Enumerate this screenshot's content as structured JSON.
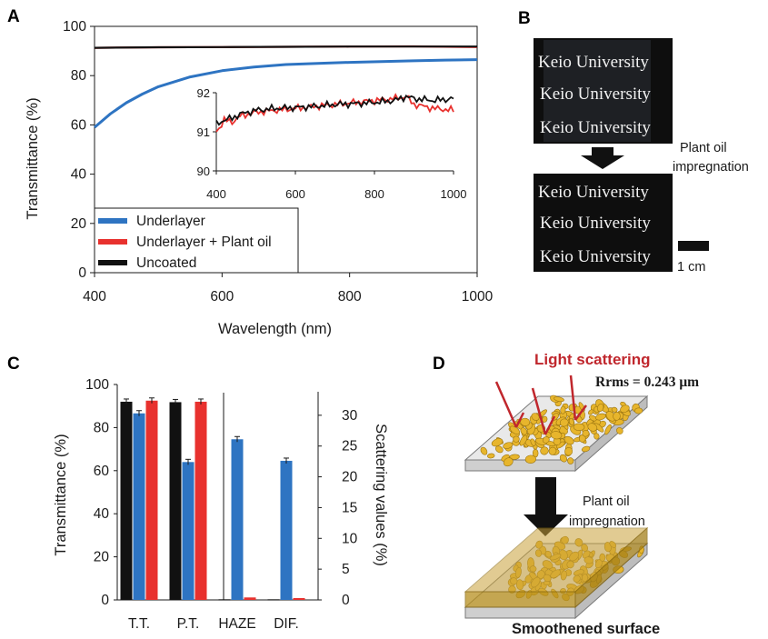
{
  "panels": {
    "a_letter": "A",
    "b_letter": "B",
    "c_letter": "C",
    "d_letter": "D"
  },
  "colors": {
    "underlayer": "#2e74c2",
    "plant_oil": "#e8312e",
    "uncoated": "#111111",
    "gold": "#e7b52c",
    "arrow_red": "#c0272d"
  },
  "chart_data": [
    {
      "id": "A",
      "type": "line",
      "xlabel": "Wavelength (nm)",
      "ylabel": "Transmittance (%)",
      "xlim": [
        400,
        1000
      ],
      "ylim": [
        0,
        100
      ],
      "xticks": [
        "400",
        "600",
        "800",
        "1000"
      ],
      "yticks": [
        "0",
        "20",
        "40",
        "60",
        "80",
        "100"
      ],
      "legend_position": "bottom-left",
      "series": [
        {
          "name": "Underlayer",
          "color": "#2e74c2",
          "x": [
            400,
            425,
            450,
            475,
            500,
            550,
            600,
            650,
            700,
            750,
            800,
            850,
            900,
            950,
            1000
          ],
          "y": [
            59,
            64.5,
            69,
            72.5,
            75.5,
            79.5,
            82,
            83.5,
            84.5,
            85,
            85.4,
            85.7,
            86,
            86.3,
            86.5
          ]
        },
        {
          "name": "Underlayer + Plant oil",
          "color": "#e8312e",
          "x": [
            400,
            500,
            600,
            700,
            800,
            900,
            1000
          ],
          "y": [
            91.3,
            91.5,
            91.6,
            91.7,
            91.8,
            91.9,
            91.6
          ]
        },
        {
          "name": "Uncoated",
          "color": "#111111",
          "x": [
            400,
            500,
            600,
            700,
            800,
            900,
            1000
          ],
          "y": [
            91.3,
            91.5,
            91.6,
            91.7,
            91.8,
            91.8,
            91.8
          ]
        }
      ],
      "inset": {
        "xlim": [
          400,
          1000
        ],
        "ylim": [
          90,
          92
        ],
        "xticks": [
          "400",
          "600",
          "800",
          "1000"
        ],
        "yticks": [
          "90",
          "91",
          "92"
        ],
        "series": [
          {
            "name": "Underlayer + Plant oil",
            "x": [
              400,
              420,
              440,
              460,
              480,
              500,
              550,
              600,
              650,
              700,
              750,
              800,
              850,
              880,
              900,
              950,
              1000
            ],
            "y": [
              91.0,
              91.3,
              91.25,
              91.4,
              91.45,
              91.5,
              91.55,
              91.6,
              91.65,
              91.7,
              91.75,
              91.8,
              91.85,
              91.9,
              91.7,
              91.6,
              91.55
            ]
          },
          {
            "name": "Uncoated",
            "x": [
              400,
              420,
              440,
              460,
              480,
              500,
              550,
              600,
              650,
              700,
              750,
              800,
              850,
              880,
              900,
              950,
              1000
            ],
            "y": [
              91.2,
              91.3,
              91.35,
              91.45,
              91.5,
              91.55,
              91.6,
              91.62,
              91.65,
              91.7,
              91.72,
              91.75,
              91.8,
              91.9,
              91.85,
              91.8,
              91.85
            ]
          }
        ]
      }
    },
    {
      "id": "C",
      "type": "bar",
      "ylabel": "Transmittance (%)",
      "y2label": "Scattering values (%)",
      "categories": [
        "T.T.",
        "P.T.",
        "HAZE",
        "DIF."
      ],
      "ylim": [
        0,
        100
      ],
      "y2lim": [
        0,
        35
      ],
      "yticks": [
        "0",
        "20",
        "40",
        "60",
        "80",
        "100"
      ],
      "y2ticks": [
        "0",
        "5",
        "10",
        "15",
        "20",
        "25",
        "30"
      ],
      "series": [
        {
          "color": "#111111",
          "values": [
            92.0,
            91.8,
            0.1,
            0.1
          ],
          "axis": [
            "left",
            "left",
            "right",
            "right"
          ]
        },
        {
          "color": "#2e74c2",
          "values": [
            86.6,
            64.0,
            26.1,
            22.6
          ],
          "axis": [
            "left",
            "left",
            "right",
            "right"
          ]
        },
        {
          "color": "#e8312e",
          "values": [
            92.5,
            92.0,
            0.4,
            0.3
          ],
          "axis": [
            "left",
            "left",
            "right",
            "right"
          ]
        }
      ]
    }
  ],
  "panel_b": {
    "photo_text": [
      "Keio University",
      "Keio University",
      "Keio University"
    ],
    "arrow_label_line1": "Plant oil",
    "arrow_label_line2": "impregnation",
    "scale_label": "1 cm"
  },
  "panel_d": {
    "light_scattering": "Light scattering",
    "rrms": "Rrms = 0.243 μm",
    "arrow_label_line1": "Plant oil",
    "arrow_label_line2": "impregnation",
    "caption": "Smoothened surface"
  }
}
